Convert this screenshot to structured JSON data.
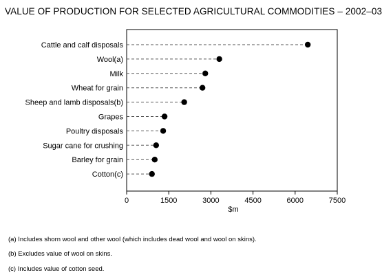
{
  "chart_data": {
    "type": "dot",
    "title": "VALUE OF PRODUCTION FOR SELECTED AGRICULTURAL COMMODITIES – 2002–03",
    "xlabel": "$m",
    "ylabel": "",
    "xlim": [
      0,
      7500
    ],
    "xticks": [
      0,
      1500,
      3000,
      4500,
      6000,
      7500
    ],
    "xtick_labels": [
      "0",
      "1500",
      "3000",
      "4500",
      "6000",
      "7500"
    ],
    "grid": false,
    "categories": [
      "Cattle and calf disposals",
      "Wool(a)",
      "Milk",
      "Wheat for grain",
      "Sheep and lamb disposals(b)",
      "Grapes",
      "Poultry disposals",
      "Sugar cane for crushing",
      "Barley for grain",
      "Cotton(c)"
    ],
    "values": [
      6450,
      3300,
      2800,
      2700,
      2050,
      1350,
      1300,
      1050,
      1000,
      900
    ]
  },
  "footnotes": [
    "(a)  Includes shorn wool and other wool (which includes dead wool and wool on skins).",
    "(b)  Excludes value of wool on skins.",
    "(c)  Includes value of cotton seed."
  ]
}
